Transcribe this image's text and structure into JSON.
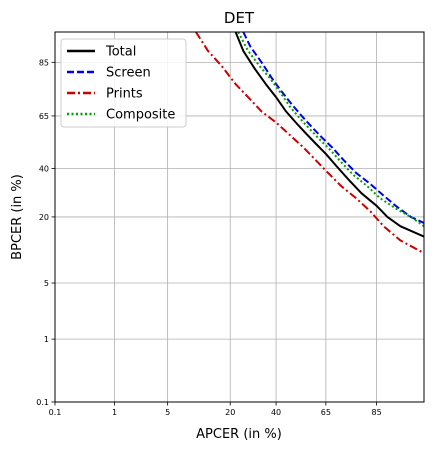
{
  "chart_data": {
    "type": "line",
    "title": "DET",
    "xlabel": "APCER (in %)",
    "ylabel": "BPCER (in %)",
    "scale": "probit",
    "xlim": [
      0.1,
      95
    ],
    "ylim": [
      0.1,
      92
    ],
    "x_ticks": [
      "0.1",
      "1",
      "5",
      "20",
      "40",
      "65",
      "85"
    ],
    "y_ticks": [
      "0.1",
      "1",
      "5",
      "20",
      "40",
      "65",
      "85"
    ],
    "grid": true,
    "legend_position": "top-left",
    "series": [
      {
        "name": "Total",
        "color": "#000000",
        "style": "solid",
        "points": [
          [
            22,
            92
          ],
          [
            25,
            88
          ],
          [
            30,
            83
          ],
          [
            35,
            78
          ],
          [
            40,
            73
          ],
          [
            45,
            67
          ],
          [
            50,
            62
          ],
          [
            55,
            57
          ],
          [
            60,
            52
          ],
          [
            65,
            47
          ],
          [
            70,
            41
          ],
          [
            75,
            35
          ],
          [
            80,
            29
          ],
          [
            85,
            24
          ],
          [
            88,
            20
          ],
          [
            91,
            17
          ],
          [
            95,
            14
          ]
        ]
      },
      {
        "name": "Screen",
        "color": "#0000ee",
        "style": "dashed",
        "points": [
          [
            25,
            92
          ],
          [
            28,
            89
          ],
          [
            33,
            85
          ],
          [
            38,
            80
          ],
          [
            42,
            76
          ],
          [
            48,
            70
          ],
          [
            53,
            65
          ],
          [
            58,
            60
          ],
          [
            63,
            55
          ],
          [
            68,
            50
          ],
          [
            73,
            44
          ],
          [
            78,
            38
          ],
          [
            83,
            33
          ],
          [
            87,
            28
          ],
          [
            90,
            24
          ],
          [
            93,
            20
          ],
          [
            95,
            18
          ]
        ]
      },
      {
        "name": "Prints",
        "color": "#cc0000",
        "style": "dashdot",
        "points": [
          [
            10,
            92
          ],
          [
            13,
            88
          ],
          [
            17,
            84
          ],
          [
            22,
            78
          ],
          [
            27,
            73
          ],
          [
            33,
            67
          ],
          [
            40,
            62
          ],
          [
            47,
            56
          ],
          [
            54,
            50
          ],
          [
            60,
            44
          ],
          [
            66,
            38
          ],
          [
            72,
            32
          ],
          [
            78,
            27
          ],
          [
            83,
            22
          ],
          [
            87,
            17
          ],
          [
            91,
            13
          ],
          [
            95,
            10
          ]
        ]
      },
      {
        "name": "Composite",
        "color": "#00a000",
        "style": "dotted",
        "points": [
          [
            23,
            92
          ],
          [
            27,
            88
          ],
          [
            32,
            84
          ],
          [
            37,
            80
          ],
          [
            42,
            75
          ],
          [
            47,
            69
          ],
          [
            52,
            64
          ],
          [
            57,
            59
          ],
          [
            62,
            54
          ],
          [
            67,
            49
          ],
          [
            72,
            43
          ],
          [
            77,
            37
          ],
          [
            82,
            32
          ],
          [
            86,
            27
          ],
          [
            90,
            23
          ],
          [
            93,
            20
          ],
          [
            95,
            17
          ]
        ]
      }
    ]
  }
}
